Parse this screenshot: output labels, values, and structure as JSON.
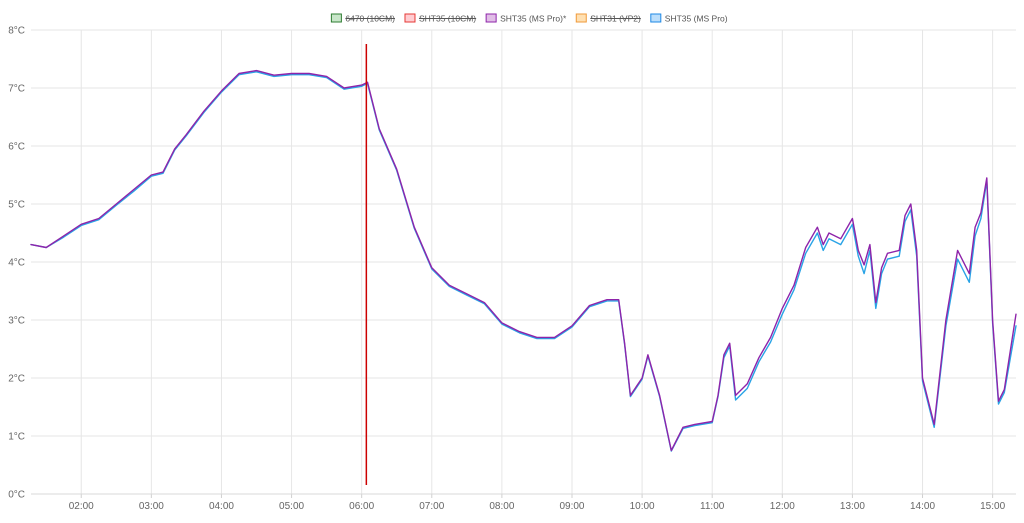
{
  "chart_data": {
    "type": "line",
    "title": "",
    "xlabel": "",
    "ylabel": "",
    "ylim": [
      0,
      8
    ],
    "xlim": [
      "01:17",
      "15:20"
    ],
    "grid": true,
    "legend_placement": "top-center",
    "y_ticks": [
      "0°C",
      "1°C",
      "2°C",
      "3°C",
      "4°C",
      "5°C",
      "6°C",
      "7°C",
      "8°C"
    ],
    "y_tick_values": [
      0,
      1,
      2,
      3,
      4,
      5,
      6,
      7,
      8
    ],
    "x_ticks": [
      "02:00",
      "03:00",
      "04:00",
      "05:00",
      "06:00",
      "07:00",
      "08:00",
      "09:00",
      "10:00",
      "11:00",
      "12:00",
      "13:00",
      "14:00",
      "15:00"
    ],
    "marker_time": "06:04",
    "marker_color": "#cc0000",
    "legend": [
      {
        "name": "6470 (10CM)",
        "hidden": true,
        "stroke": "#2e7d32",
        "fill": "#c8e6c9"
      },
      {
        "name": "SHT35 (10CM)",
        "hidden": true,
        "stroke": "#e53935",
        "fill": "#ffcdd2"
      },
      {
        "name": "SHT35 (MS Pro)*",
        "hidden": false,
        "stroke": "#8e24aa",
        "fill": "#e1bee7"
      },
      {
        "name": "SHT31 (VP2)",
        "hidden": true,
        "stroke": "#ef9a3a",
        "fill": "#ffe0b2"
      },
      {
        "name": "SHT35 (MS Pro)",
        "hidden": false,
        "stroke": "#1e88e5",
        "fill": "#bbdefb"
      }
    ],
    "series": [
      {
        "name": "SHT35 (MS Pro)*",
        "color": "#8e24aa",
        "x": [
          "01:17",
          "01:30",
          "01:45",
          "02:00",
          "02:15",
          "02:30",
          "02:45",
          "03:00",
          "03:10",
          "03:20",
          "03:30",
          "03:45",
          "04:00",
          "04:15",
          "04:30",
          "04:45",
          "05:00",
          "05:15",
          "05:30",
          "05:45",
          "06:00",
          "06:05",
          "06:15",
          "06:30",
          "06:45",
          "07:00",
          "07:15",
          "07:30",
          "07:45",
          "08:00",
          "08:15",
          "08:30",
          "08:45",
          "09:00",
          "09:15",
          "09:30",
          "09:40",
          "09:45",
          "09:50",
          "10:00",
          "10:05",
          "10:15",
          "10:25",
          "10:35",
          "10:45",
          "11:00",
          "11:05",
          "11:10",
          "11:15",
          "11:20",
          "11:30",
          "11:40",
          "11:50",
          "12:00",
          "12:10",
          "12:20",
          "12:30",
          "12:35",
          "12:40",
          "12:50",
          "13:00",
          "13:05",
          "13:10",
          "13:15",
          "13:20",
          "13:25",
          "13:30",
          "13:40",
          "13:45",
          "13:50",
          "13:55",
          "14:00",
          "14:10",
          "14:20",
          "14:30",
          "14:40",
          "14:45",
          "14:50",
          "14:55",
          "15:00",
          "15:05",
          "15:10",
          "15:20"
        ],
        "values": [
          4.3,
          4.25,
          4.45,
          4.65,
          4.75,
          5.0,
          5.25,
          5.5,
          5.55,
          5.95,
          6.2,
          6.6,
          6.95,
          7.25,
          7.3,
          7.22,
          7.25,
          7.25,
          7.2,
          7.0,
          7.05,
          7.1,
          6.3,
          5.6,
          4.6,
          3.9,
          3.6,
          3.45,
          3.3,
          2.95,
          2.8,
          2.7,
          2.7,
          2.9,
          3.25,
          3.35,
          3.35,
          2.6,
          1.7,
          2.0,
          2.4,
          1.7,
          0.75,
          1.15,
          1.2,
          1.25,
          1.7,
          2.4,
          2.6,
          1.7,
          1.9,
          2.35,
          2.7,
          3.2,
          3.6,
          4.25,
          4.6,
          4.3,
          4.5,
          4.4,
          4.75,
          4.2,
          3.95,
          4.3,
          3.3,
          3.9,
          4.15,
          4.2,
          4.8,
          5.0,
          4.2,
          2.0,
          1.2,
          3.0,
          4.2,
          3.8,
          4.6,
          4.85,
          5.45,
          3.0,
          1.6,
          1.8,
          3.1
        ]
      },
      {
        "name": "SHT35 (MS Pro)",
        "color": "#29a3e6",
        "x": [
          "01:17",
          "01:30",
          "01:45",
          "02:00",
          "02:15",
          "02:30",
          "02:45",
          "03:00",
          "03:10",
          "03:20",
          "03:30",
          "03:45",
          "04:00",
          "04:15",
          "04:30",
          "04:45",
          "05:00",
          "05:15",
          "05:30",
          "05:45",
          "06:00",
          "06:05",
          "06:15",
          "06:30",
          "06:45",
          "07:00",
          "07:15",
          "07:30",
          "07:45",
          "08:00",
          "08:15",
          "08:30",
          "08:45",
          "09:00",
          "09:15",
          "09:30",
          "09:40",
          "09:45",
          "09:50",
          "10:00",
          "10:05",
          "10:15",
          "10:25",
          "10:35",
          "10:45",
          "11:00",
          "11:05",
          "11:10",
          "11:15",
          "11:20",
          "11:30",
          "11:40",
          "11:50",
          "12:00",
          "12:10",
          "12:20",
          "12:30",
          "12:35",
          "12:40",
          "12:50",
          "13:00",
          "13:05",
          "13:10",
          "13:15",
          "13:20",
          "13:25",
          "13:30",
          "13:40",
          "13:45",
          "13:50",
          "13:55",
          "14:00",
          "14:10",
          "14:20",
          "14:30",
          "14:40",
          "14:45",
          "14:50",
          "14:55",
          "15:00",
          "15:05",
          "15:10",
          "15:20"
        ],
        "values": [
          4.3,
          4.25,
          4.43,
          4.63,
          4.73,
          4.98,
          5.22,
          5.48,
          5.53,
          5.93,
          6.18,
          6.58,
          6.93,
          7.23,
          7.28,
          7.2,
          7.23,
          7.23,
          7.18,
          6.98,
          7.03,
          7.08,
          6.28,
          5.58,
          4.58,
          3.88,
          3.58,
          3.43,
          3.28,
          2.93,
          2.78,
          2.68,
          2.68,
          2.88,
          3.23,
          3.33,
          3.33,
          2.58,
          1.68,
          1.98,
          2.38,
          1.68,
          0.74,
          1.13,
          1.18,
          1.23,
          1.68,
          2.35,
          2.55,
          1.62,
          1.82,
          2.28,
          2.62,
          3.1,
          3.52,
          4.15,
          4.5,
          4.2,
          4.4,
          4.3,
          4.65,
          4.1,
          3.8,
          4.2,
          3.2,
          3.8,
          4.05,
          4.1,
          4.7,
          4.9,
          4.1,
          1.95,
          1.15,
          2.9,
          4.05,
          3.65,
          4.45,
          4.75,
          5.4,
          2.95,
          1.55,
          1.75,
          2.9
        ]
      }
    ]
  }
}
